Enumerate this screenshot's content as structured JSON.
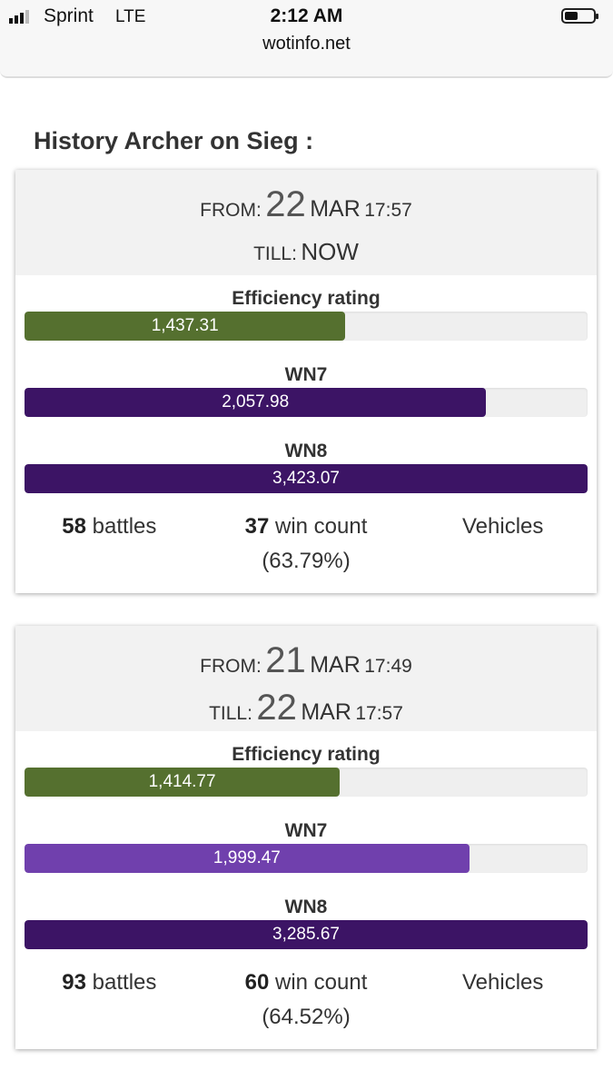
{
  "status_bar": {
    "carrier": "Sprint",
    "network": "LTE",
    "time": "2:12 AM",
    "url": "wotinfo.net"
  },
  "heading": "History Archer on Sieg :",
  "cards": [
    {
      "from": {
        "label": "FROM:",
        "day": "22",
        "month": "MAR",
        "time": "17:57"
      },
      "till": {
        "label": "TILL:",
        "text": "NOW"
      },
      "ratings": [
        {
          "label": "Efficiency rating",
          "value": "1,437.31"
        },
        {
          "label": "WN7",
          "value": "2,057.98"
        },
        {
          "label": "WN8",
          "value": "3,423.07"
        }
      ],
      "battles": {
        "count": "58",
        "label": "battles"
      },
      "wins": {
        "count": "37",
        "label": "win count (63.79%)"
      },
      "vehicles": "Vehicles"
    },
    {
      "from": {
        "label": "FROM:",
        "day": "21",
        "month": "MAR",
        "time": "17:49"
      },
      "till": {
        "label": "TILL:",
        "day": "22",
        "month": "MAR",
        "time": "17:57"
      },
      "ratings": [
        {
          "label": "Efficiency rating",
          "value": "1,414.77"
        },
        {
          "label": "WN7",
          "value": "1,999.47"
        },
        {
          "label": "WN8",
          "value": "3,285.67"
        }
      ],
      "battles": {
        "count": "93",
        "label": "battles"
      },
      "wins": {
        "count": "60",
        "label": "win count (64.52%)"
      },
      "vehicles": "Vehicles"
    }
  ]
}
